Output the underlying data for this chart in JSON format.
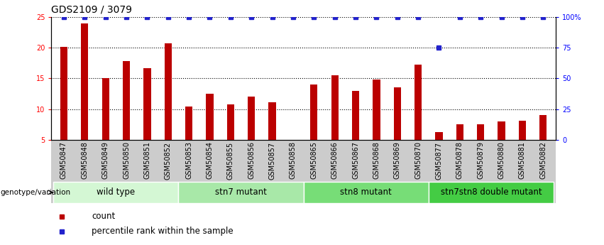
{
  "title": "GDS2109 / 3079",
  "samples": [
    "GSM50847",
    "GSM50848",
    "GSM50849",
    "GSM50850",
    "GSM50851",
    "GSM50852",
    "GSM50853",
    "GSM50854",
    "GSM50855",
    "GSM50856",
    "GSM50857",
    "GSM50858",
    "GSM50865",
    "GSM50866",
    "GSM50867",
    "GSM50868",
    "GSM50869",
    "GSM50870",
    "GSM50877",
    "GSM50878",
    "GSM50879",
    "GSM50880",
    "GSM50881",
    "GSM50882"
  ],
  "counts": [
    20.2,
    24.0,
    15.0,
    17.8,
    16.7,
    20.7,
    10.4,
    12.5,
    10.8,
    12.0,
    11.1,
    5.0,
    14.0,
    15.5,
    13.0,
    14.8,
    13.5,
    17.2,
    6.2,
    7.5,
    7.5,
    8.0,
    8.1,
    9.0
  ],
  "percentile_ranks": [
    100,
    100,
    100,
    100,
    100,
    100,
    100,
    100,
    100,
    100,
    100,
    100,
    100,
    100,
    100,
    100,
    100,
    100,
    75,
    100,
    100,
    100,
    100,
    100
  ],
  "groups": [
    {
      "label": "wild type",
      "start": 0,
      "end": 6,
      "color": "#d4f7d4"
    },
    {
      "label": "stn7 mutant",
      "start": 6,
      "end": 12,
      "color": "#a8e8a8"
    },
    {
      "label": "stn8 mutant",
      "start": 12,
      "end": 18,
      "color": "#77dd77"
    },
    {
      "label": "stn7stn8 double mutant",
      "start": 18,
      "end": 24,
      "color": "#44cc44"
    }
  ],
  "bar_color": "#bb0000",
  "percentile_color": "#2222cc",
  "ylim_left": [
    5,
    25
  ],
  "ylim_right": [
    0,
    100
  ],
  "yticks_left": [
    5,
    10,
    15,
    20,
    25
  ],
  "yticks_right": [
    0,
    25,
    50,
    75,
    100
  ],
  "ytick_labels_right": [
    "0",
    "25",
    "50",
    "75",
    "100%"
  ],
  "bar_width": 0.35,
  "title_fontsize": 10,
  "tick_fontsize": 7,
  "group_label_fontsize": 8.5,
  "legend_count_label": "count",
  "legend_pct_label": "percentile rank within the sample",
  "xtick_bg_color": "#cccccc",
  "dotted_yticks": [
    10,
    15,
    20,
    25
  ]
}
